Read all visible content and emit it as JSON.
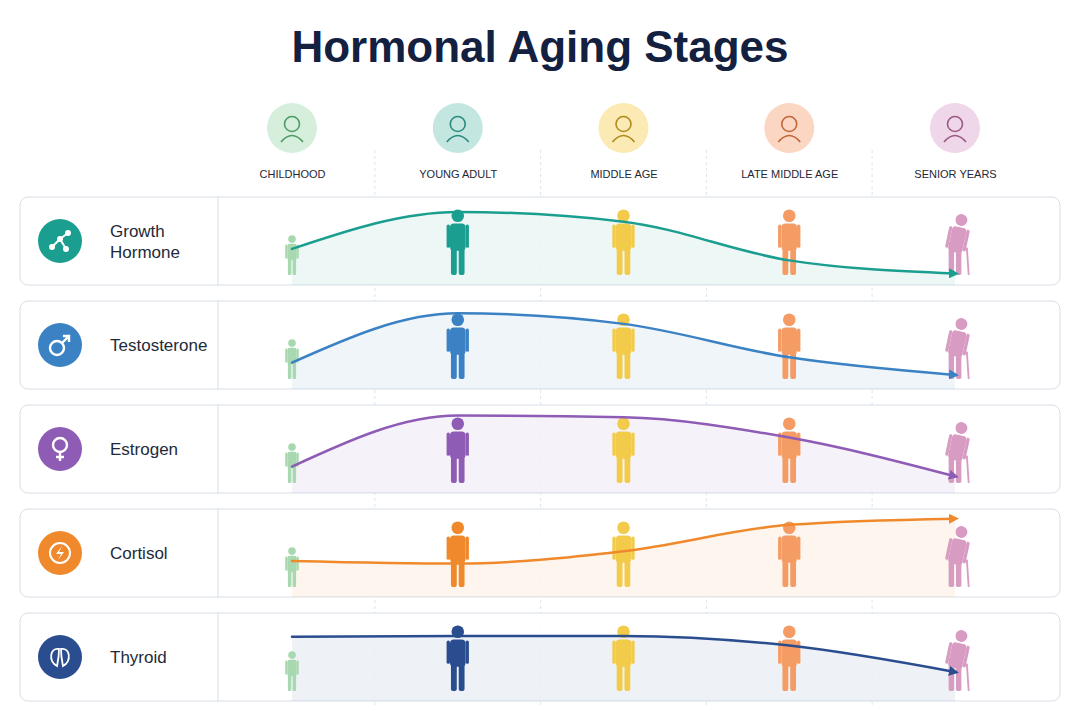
{
  "chart_data": {
    "type": "line",
    "title": "Hormonal Aging Stages",
    "categories": [
      "CHILDHOOD",
      "YOUNG ADULT",
      "MIDDLE AGE",
      "LATE MIDDLE AGE",
      "SENIOR YEARS"
    ],
    "ylim": [
      0,
      100
    ],
    "tick_labels": "x",
    "series": [
      {
        "name": "Growth Hormone",
        "color": "#1a9e8f",
        "values": [
          41,
          83,
          72,
          28,
          13
        ]
      },
      {
        "name": "Testosterone",
        "color": "#3b82c4",
        "values": [
          30,
          86,
          74,
          36,
          16
        ]
      },
      {
        "name": "Estrogen",
        "color": "#8e5bb5",
        "values": [
          30,
          88,
          86,
          63,
          19
        ]
      },
      {
        "name": "Cortisol",
        "color": "#f0892c",
        "values": [
          41,
          38,
          52,
          82,
          89
        ]
      },
      {
        "name": "Thyroid",
        "color": "#2a4d8f",
        "values": [
          73,
          74,
          74,
          63,
          33
        ]
      }
    ]
  }
}
